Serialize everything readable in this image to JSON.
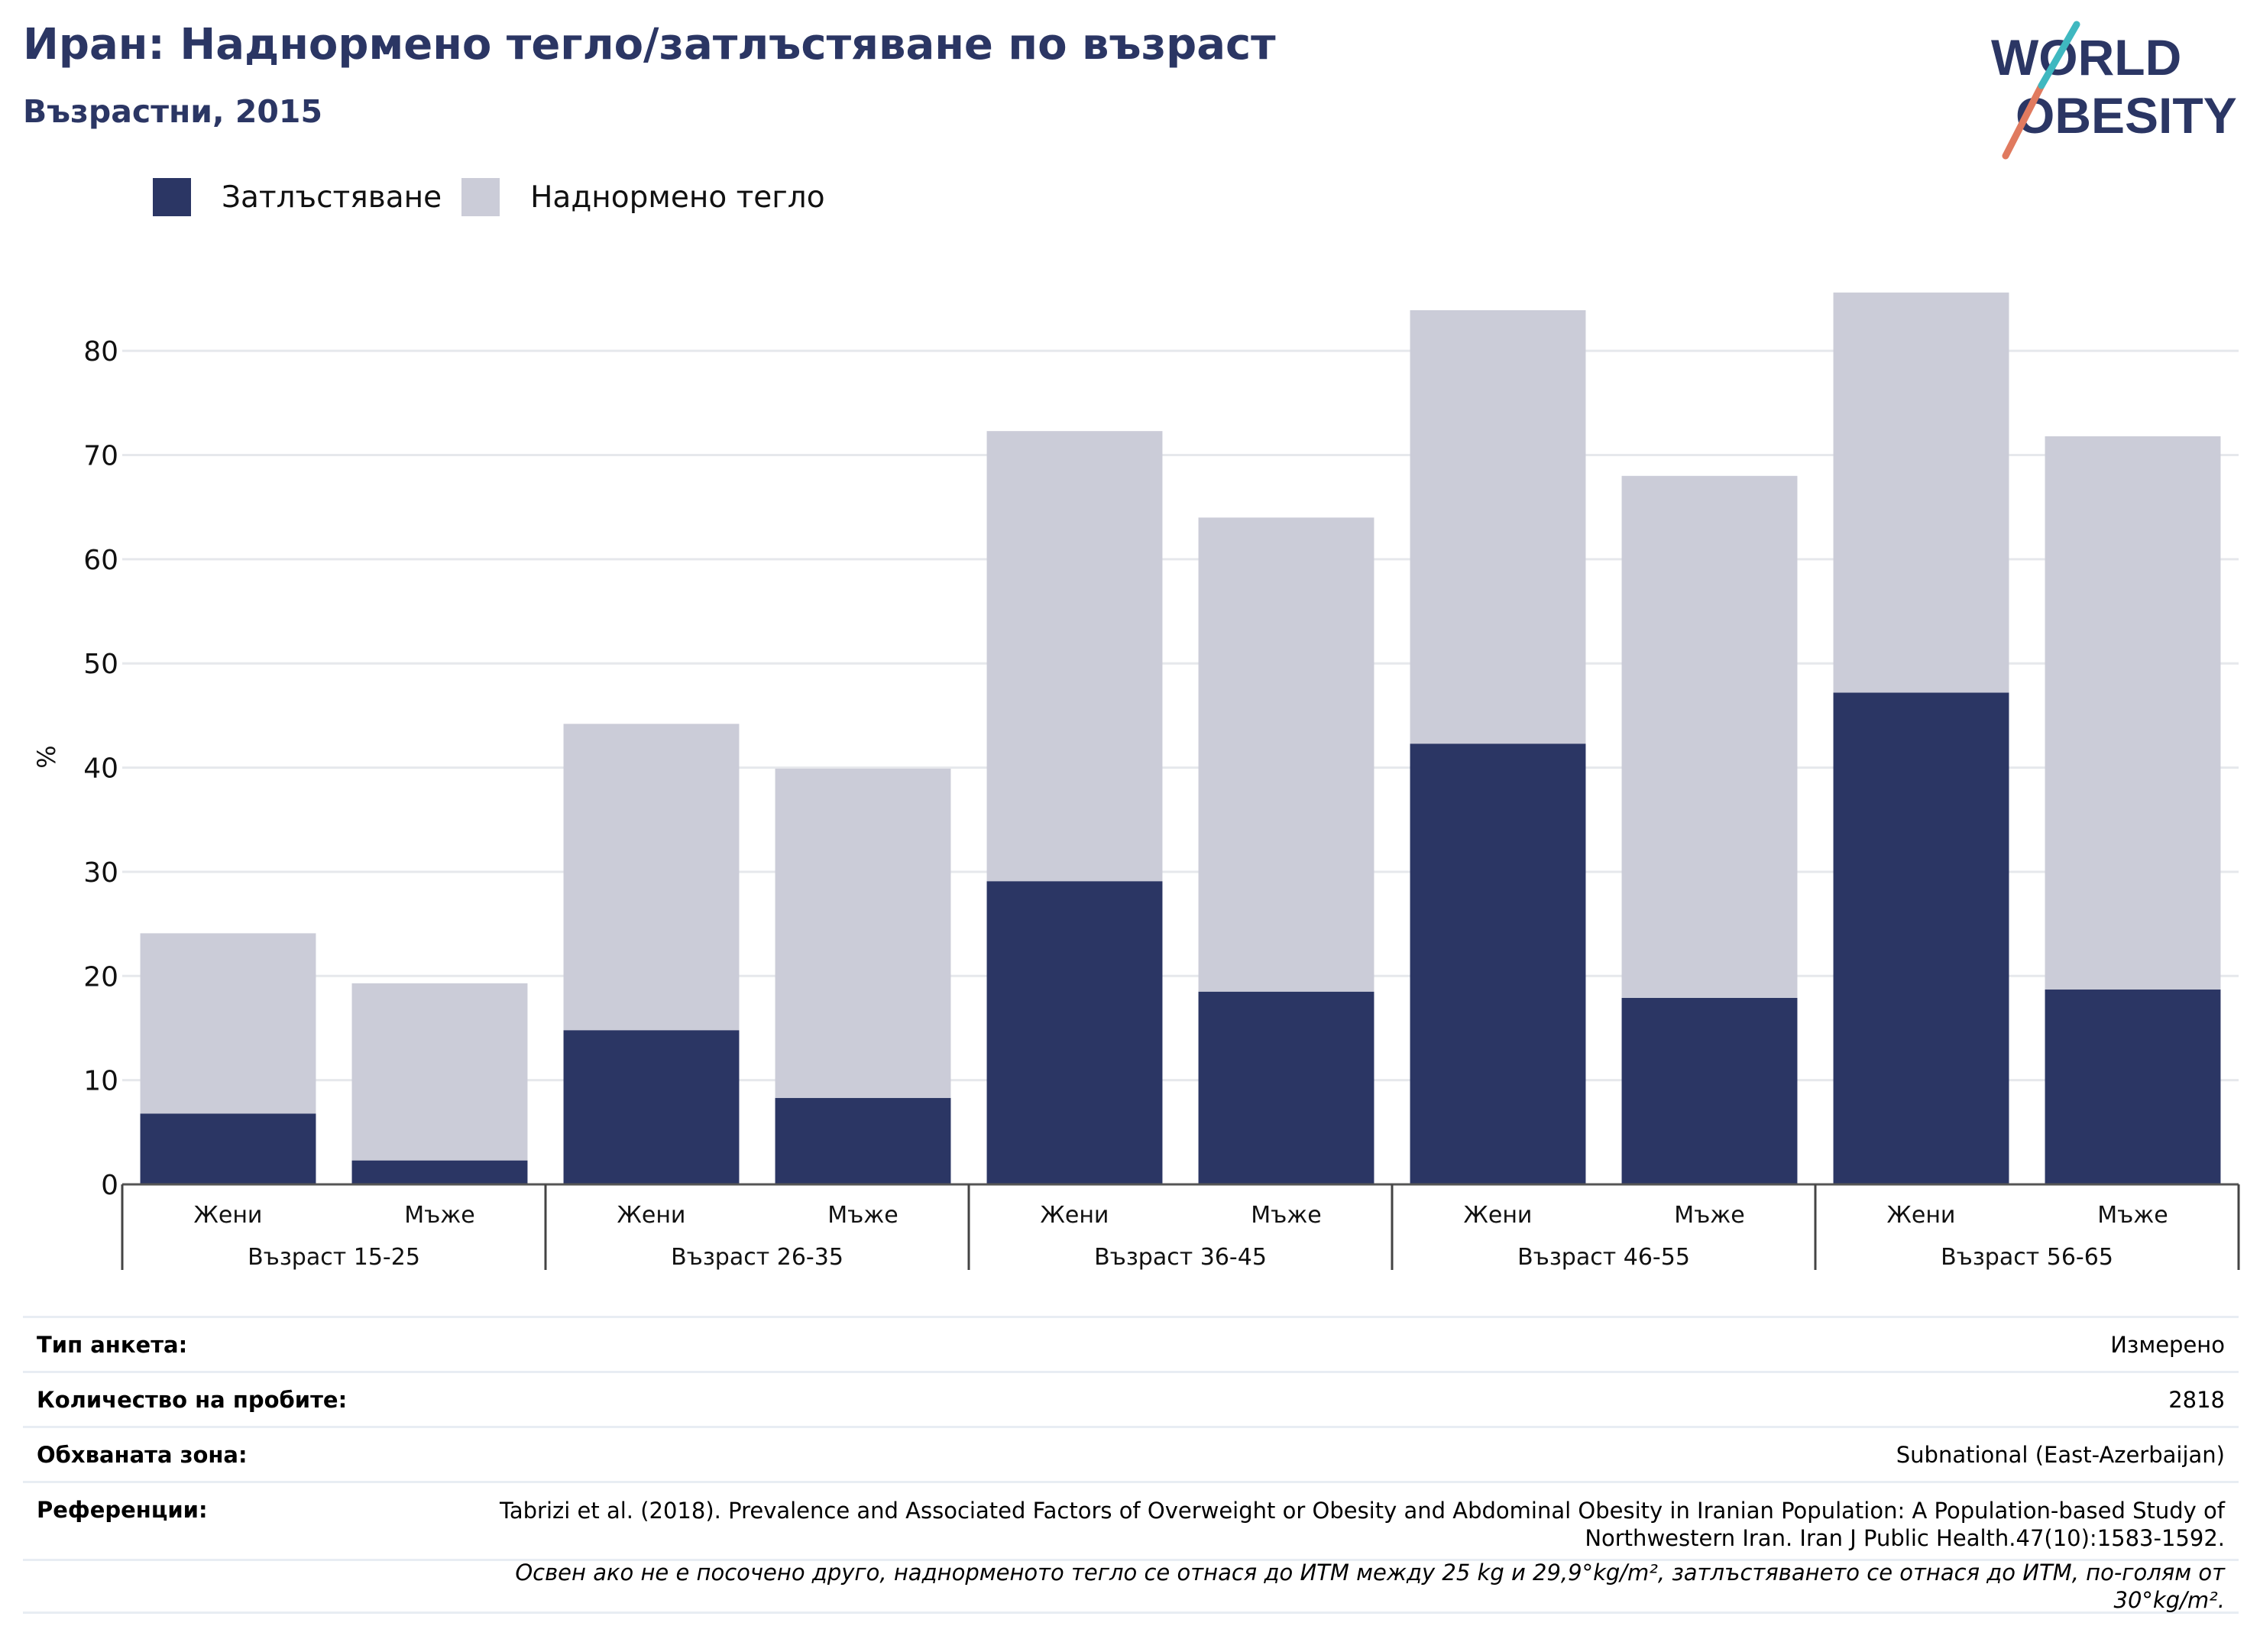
{
  "header": {
    "title": "Иран: Наднормено тегло/затлъстяване по възраст",
    "subtitle": "Възрастни, 2015"
  },
  "logo": {
    "line1": "WORLD",
    "line2": "OBESITY",
    "accent": "#e07a5f",
    "accent2": "#3fb8c0"
  },
  "legend": [
    {
      "label": "Затлъстяване",
      "color": "#2b3664"
    },
    {
      "label": "Наднормено тегло",
      "color": "#cbccd8"
    }
  ],
  "chart_data": {
    "type": "bar",
    "stacked": true,
    "ylabel": "%",
    "ylim": [
      0,
      85
    ],
    "yticks": [
      0,
      10,
      20,
      30,
      40,
      50,
      60,
      70,
      80
    ],
    "grid": true,
    "legend_position": "top-left",
    "groups": [
      "Възраст 15-25",
      "Възраст 26-35",
      "Възраст 36-45",
      "Възраст 46-55",
      "Възраст 56-65"
    ],
    "categories": [
      "Жени",
      "Мъже",
      "Жени",
      "Мъже",
      "Жени",
      "Мъже",
      "Жени",
      "Мъже",
      "Жени",
      "Мъже"
    ],
    "series": [
      {
        "name": "Затлъстяване",
        "color": "#2b3664",
        "values": [
          6.8,
          2.3,
          14.8,
          8.3,
          29.1,
          18.5,
          42.3,
          17.9,
          47.2,
          18.7
        ]
      },
      {
        "name": "Наднормено тегло",
        "color": "#cbccd8",
        "values": [
          17.3,
          17.0,
          29.4,
          31.6,
          43.2,
          45.5,
          41.6,
          50.1,
          38.4,
          53.1
        ]
      }
    ]
  },
  "info": {
    "survey_label": "Тип анкета:",
    "survey_value": "Измерено",
    "sample_label": "Количество на пробите:",
    "sample_value": "2818",
    "area_label": "Обхваната зона:",
    "area_value": "Subnational (East-Azerbaijan)",
    "refs_label": "Референции:",
    "refs_value": "Tabrizi et al. (2018). Prevalence and Associated Factors of Overweight or Obesity and Abdominal Obesity in Iranian Population: A Population-based Study of Northwestern Iran. Iran J Public Health.47(10):1583-1592.",
    "note": "Освен ако не е посочено друго, наднорменото тегло се отнася до ИТМ между 25 kg и 29,9°kg/m², затлъстяването се отнася до ИТМ, по-голям от 30°kg/m²."
  }
}
